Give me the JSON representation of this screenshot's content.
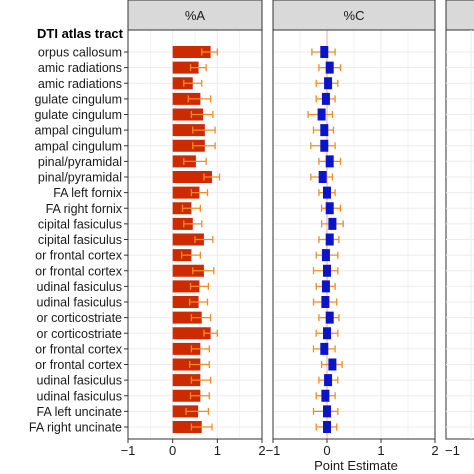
{
  "chart_data": {
    "type": "bar",
    "row_header": "DTI atlas tract",
    "xlabel": "Point Estimate",
    "xlim": [
      -1,
      2
    ],
    "xticks": [
      "−1",
      "0",
      "1",
      "2"
    ],
    "grid": true,
    "colors": {
      "bar": "#cc2a00",
      "error_bar": "#f28c28",
      "point": "#0a14c8",
      "point_error": "#f28c28",
      "strip": "#d9d9d9",
      "grid": "#ebebeb"
    },
    "categories": [
      "orpus callosum",
      "amic radiations",
      "amic radiations",
      "gulate cingulum",
      "gulate cingulum",
      "ampal cingulum",
      "ampal cingulum",
      "pinal/pyramidal",
      "pinal/pyramidal",
      "FA left fornix",
      "FA right fornix",
      "cipital fasiculus",
      "cipital fasiculus",
      "or frontal cortex",
      "or frontal cortex",
      "udinal fasiculus",
      "udinal fasiculus",
      "or corticostriate",
      "or corticostriate",
      "or frontal cortex",
      "or frontal cortex",
      "udinal fasiculus",
      "udinal fasiculus",
      "FA left uncinate",
      "FA right uncinate"
    ],
    "series": [
      {
        "name": "%A",
        "mark": "bar",
        "values": [
          0.85,
          0.58,
          0.45,
          0.62,
          0.68,
          0.72,
          0.72,
          0.52,
          0.88,
          0.6,
          0.42,
          0.45,
          0.7,
          0.42,
          0.7,
          0.6,
          0.58,
          0.65,
          0.85,
          0.62,
          0.62,
          0.62,
          0.62,
          0.57,
          0.65
        ],
        "err_low": [
          0.65,
          0.4,
          0.25,
          0.35,
          0.42,
          0.45,
          0.45,
          0.25,
          0.7,
          0.42,
          0.22,
          0.25,
          0.5,
          0.2,
          0.45,
          0.4,
          0.38,
          0.42,
          0.7,
          0.42,
          0.38,
          0.42,
          0.4,
          0.3,
          0.42
        ],
        "err_high": [
          1.0,
          0.75,
          0.65,
          0.85,
          0.9,
          0.95,
          0.95,
          0.75,
          1.05,
          0.78,
          0.62,
          0.65,
          0.9,
          0.62,
          0.92,
          0.8,
          0.78,
          0.85,
          1.0,
          0.82,
          0.82,
          0.85,
          0.82,
          0.8,
          0.88
        ]
      },
      {
        "name": "%C",
        "mark": "point",
        "values": [
          -0.05,
          0.05,
          0.02,
          -0.02,
          -0.1,
          -0.05,
          -0.05,
          0.05,
          -0.08,
          0.0,
          0.05,
          0.1,
          0.05,
          -0.02,
          0.0,
          -0.02,
          -0.03,
          0.05,
          0.0,
          -0.05,
          0.1,
          0.02,
          -0.03,
          0.0,
          0.0
        ],
        "err_low": [
          -0.28,
          -0.15,
          -0.2,
          -0.2,
          -0.35,
          -0.25,
          -0.3,
          -0.15,
          -0.3,
          -0.15,
          -0.1,
          -0.1,
          -0.15,
          -0.2,
          -0.25,
          -0.2,
          -0.25,
          -0.15,
          -0.2,
          -0.25,
          -0.1,
          -0.15,
          -0.2,
          -0.25,
          -0.2
        ],
        "err_high": [
          0.15,
          0.25,
          0.2,
          0.15,
          0.1,
          0.12,
          0.15,
          0.25,
          0.1,
          0.15,
          0.25,
          0.3,
          0.22,
          0.2,
          0.2,
          0.15,
          0.18,
          0.22,
          0.2,
          0.15,
          0.28,
          0.2,
          0.15,
          0.2,
          0.18
        ]
      }
    ]
  }
}
